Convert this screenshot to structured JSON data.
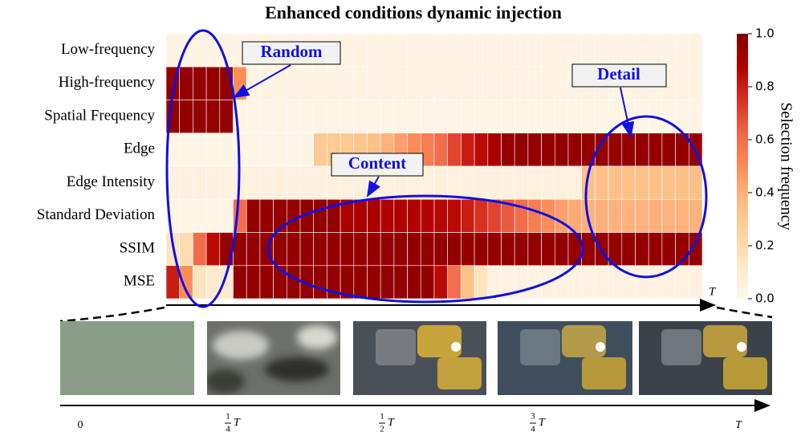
{
  "chart_data": {
    "type": "heatmap",
    "title": "Enhanced conditions dynamic injection",
    "categories": [
      "Low-frequency",
      "High-frequency",
      "Spatial Frequency",
      "Edge",
      "Edge Intensity",
      "Standard Deviation",
      "SSIM",
      "MSE"
    ],
    "z": [
      [
        0.03,
        0.03,
        0.03,
        0.03,
        0.03,
        0.03,
        0.03,
        0.03,
        0.03,
        0.03,
        0.03,
        0.03,
        0.03,
        0.03,
        0.03,
        0.03,
        0.03,
        0.03,
        0.03,
        0.03,
        0.03,
        0.03,
        0.03,
        0.03,
        0.03,
        0.03,
        0.03,
        0.03,
        0.03,
        0.03,
        0.03,
        0.03,
        0.03,
        0.03,
        0.03,
        0.03,
        0.03,
        0.03,
        0.03,
        0.03
      ],
      [
        0.95,
        0.95,
        0.95,
        0.95,
        0.95,
        0.5,
        0.03,
        0.03,
        0.03,
        0.03,
        0.03,
        0.03,
        0.03,
        0.03,
        0.03,
        0.03,
        0.03,
        0.03,
        0.03,
        0.03,
        0.03,
        0.03,
        0.03,
        0.03,
        0.03,
        0.03,
        0.03,
        0.03,
        0.03,
        0.03,
        0.03,
        0.03,
        0.03,
        0.03,
        0.03,
        0.03,
        0.03,
        0.03,
        0.03,
        0.03
      ],
      [
        0.95,
        0.95,
        0.95,
        0.95,
        0.95,
        0.02,
        0.02,
        0.02,
        0.02,
        0.02,
        0.02,
        0.02,
        0.02,
        0.02,
        0.02,
        0.02,
        0.02,
        0.02,
        0.02,
        0.02,
        0.02,
        0.02,
        0.02,
        0.02,
        0.02,
        0.02,
        0.02,
        0.02,
        0.02,
        0.02,
        0.02,
        0.02,
        0.02,
        0.02,
        0.02,
        0.02,
        0.02,
        0.02,
        0.02,
        0.02
      ],
      [
        0.02,
        0.02,
        0.02,
        0.02,
        0.02,
        0.02,
        0.02,
        0.02,
        0.02,
        0.02,
        0.02,
        0.3,
        0.3,
        0.3,
        0.32,
        0.35,
        0.4,
        0.45,
        0.5,
        0.55,
        0.6,
        0.7,
        0.8,
        0.85,
        0.9,
        0.95,
        0.95,
        0.95,
        0.95,
        0.95,
        0.95,
        0.95,
        0.95,
        0.95,
        0.95,
        0.95,
        0.95,
        0.95,
        0.95,
        0.95
      ],
      [
        0.05,
        0.05,
        0.05,
        0.05,
        0.05,
        0.05,
        0.05,
        0.05,
        0.05,
        0.05,
        0.05,
        0.05,
        0.05,
        0.05,
        0.05,
        0.05,
        0.05,
        0.05,
        0.05,
        0.05,
        0.05,
        0.05,
        0.05,
        0.05,
        0.05,
        0.05,
        0.05,
        0.05,
        0.05,
        0.05,
        0.05,
        0.35,
        0.35,
        0.35,
        0.35,
        0.35,
        0.35,
        0.35,
        0.35,
        0.35
      ],
      [
        0.02,
        0.02,
        0.02,
        0.02,
        0.02,
        0.6,
        0.95,
        0.95,
        0.95,
        0.95,
        0.95,
        0.95,
        0.95,
        0.9,
        0.9,
        0.9,
        0.88,
        0.88,
        0.88,
        0.87,
        0.86,
        0.85,
        0.8,
        0.75,
        0.7,
        0.65,
        0.6,
        0.55,
        0.5,
        0.45,
        0.42,
        0.4,
        0.4,
        0.4,
        0.4,
        0.4,
        0.4,
        0.4,
        0.4,
        0.4
      ],
      [
        0.15,
        0.2,
        0.6,
        0.85,
        0.95,
        0.95,
        0.95,
        0.95,
        0.95,
        0.95,
        0.95,
        0.95,
        0.95,
        0.95,
        0.95,
        0.95,
        0.95,
        0.95,
        0.95,
        0.95,
        0.95,
        0.95,
        0.95,
        0.95,
        0.95,
        0.95,
        0.95,
        0.95,
        0.95,
        0.95,
        0.95,
        0.95,
        0.95,
        0.95,
        0.95,
        0.95,
        0.95,
        0.95,
        0.95,
        0.95
      ],
      [
        0.8,
        0.5,
        0.15,
        0.1,
        0.1,
        0.95,
        0.95,
        0.95,
        0.95,
        0.95,
        0.95,
        0.95,
        0.95,
        0.95,
        0.95,
        0.95,
        0.95,
        0.95,
        0.95,
        0.95,
        0.85,
        0.6,
        0.35,
        0.15,
        0.04,
        0.04,
        0.04,
        0.04,
        0.04,
        0.04,
        0.04,
        0.04,
        0.04,
        0.04,
        0.04,
        0.04,
        0.04,
        0.04,
        0.04,
        0.04
      ]
    ],
    "colorscale": [
      "#fff7ec",
      "#fee8c8",
      "#fdd49e",
      "#fdbb84",
      "#fc8d59",
      "#ef6548",
      "#d7301f",
      "#b30000",
      "#7f0000"
    ],
    "zlim": [
      0,
      1
    ],
    "zticks": [
      {
        "value": 0,
        "label": "0.0"
      },
      0.2,
      0.4,
      0.6,
      0.8,
      {
        "value": 1,
        "label": "1.0"
      }
    ],
    "colorbar_label": "Selection frequency",
    "x_end_label": "T",
    "annotations": [
      "Random",
      "Content",
      "Detail"
    ]
  },
  "timeline": [
    {
      "label": "0"
    },
    {
      "num": "1",
      "den": "4",
      "symbol": "T"
    },
    {
      "num": "1",
      "den": "2",
      "symbol": "T"
    },
    {
      "num": "3",
      "den": "4",
      "symbol": "T"
    },
    {
      "label": "T"
    }
  ]
}
